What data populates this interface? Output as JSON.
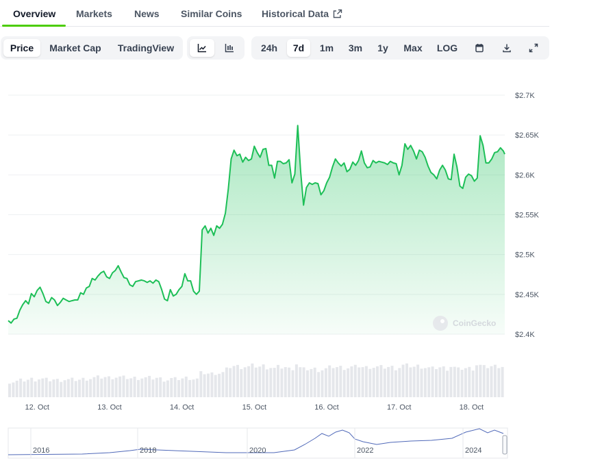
{
  "tabs": [
    {
      "label": "Overview",
      "active": true
    },
    {
      "label": "Markets"
    },
    {
      "label": "News"
    },
    {
      "label": "Similar Coins"
    },
    {
      "label": "Historical Data"
    }
  ],
  "toolbar": {
    "chart_types": [
      {
        "label": "Price",
        "selected": true
      },
      {
        "label": "Market Cap"
      },
      {
        "label": "TradingView"
      }
    ],
    "view_icons": [
      "line-chart-icon",
      "candlestick-icon"
    ],
    "ranges": [
      {
        "label": "24h"
      },
      {
        "label": "7d",
        "selected": true
      },
      {
        "label": "1m"
      },
      {
        "label": "3m"
      },
      {
        "label": "1y"
      },
      {
        "label": "Max"
      },
      {
        "label": "LOG"
      }
    ],
    "action_icons": [
      "calendar-icon",
      "download-icon",
      "expand-icon"
    ]
  },
  "colors": {
    "accent": "#4bcc00",
    "line": "#16c35a",
    "fill": "#bbf0cb",
    "volume": "#e5e7eb"
  },
  "watermark": "CoinGecko",
  "chart_data": {
    "type": "area",
    "title": "",
    "xlabel": "",
    "ylabel": "",
    "y_ticks": [
      "$2.7K",
      "$2.65K",
      "$2.6K",
      "$2.55K",
      "$2.5K",
      "$2.45K",
      "$2.4K"
    ],
    "ylim": [
      2400,
      2700
    ],
    "x_ticks": [
      "12. Oct",
      "13. Oct",
      "14. Oct",
      "15. Oct",
      "16. Oct",
      "17. Oct",
      "18. Oct"
    ],
    "x_range_days": [
      11.6,
      18.46
    ],
    "grid": true,
    "price_series": {
      "x_days": [
        11.6,
        11.64,
        11.68,
        11.72,
        11.76,
        11.8,
        11.84,
        11.88,
        11.92,
        11.96,
        12.0,
        12.04,
        12.08,
        12.12,
        12.16,
        12.2,
        12.24,
        12.28,
        12.32,
        12.36,
        12.4,
        12.44,
        12.48,
        12.52,
        12.56,
        12.6,
        12.64,
        12.68,
        12.72,
        12.76,
        12.8,
        12.84,
        12.88,
        12.92,
        12.96,
        13.0,
        13.04,
        13.08,
        13.12,
        13.16,
        13.2,
        13.24,
        13.28,
        13.32,
        13.36,
        13.4,
        13.44,
        13.48,
        13.52,
        13.56,
        13.6,
        13.64,
        13.68,
        13.72,
        13.76,
        13.8,
        13.84,
        13.88,
        13.92,
        13.96,
        14.0,
        14.04,
        14.08,
        14.12,
        14.16,
        14.2,
        14.24,
        14.28,
        14.32,
        14.36,
        14.4,
        14.44,
        14.48,
        14.52,
        14.56,
        14.6,
        14.64,
        14.68,
        14.72,
        14.76,
        14.8,
        14.84,
        14.88,
        14.92,
        14.96,
        15.0,
        15.04,
        15.08,
        15.12,
        15.16,
        15.2,
        15.24,
        15.28,
        15.32,
        15.36,
        15.4,
        15.44,
        15.48,
        15.52,
        15.56,
        15.6,
        15.64,
        15.68,
        15.72,
        15.76,
        15.8,
        15.84,
        15.88,
        15.92,
        15.96,
        16.0,
        16.04,
        16.08,
        16.12,
        16.16,
        16.2,
        16.24,
        16.28,
        16.32,
        16.36,
        16.4,
        16.44,
        16.48,
        16.52,
        16.56,
        16.6,
        16.64,
        16.68,
        16.72,
        16.76,
        16.8,
        16.84,
        16.88,
        16.92,
        16.96,
        17.0,
        17.04,
        17.08,
        17.12,
        17.16,
        17.2,
        17.24,
        17.28,
        17.32,
        17.36,
        17.4,
        17.44,
        17.48,
        17.52,
        17.56,
        17.6,
        17.64,
        17.68,
        17.72,
        17.76,
        17.8,
        17.84,
        17.88,
        17.92,
        17.96,
        18.0,
        18.04,
        18.08,
        18.12,
        18.16,
        18.2,
        18.24,
        18.28,
        18.32,
        18.36,
        18.4,
        18.44,
        18.46
      ],
      "price": [
        2417,
        2414,
        2419,
        2420,
        2430,
        2437,
        2442,
        2438,
        2451,
        2447,
        2455,
        2459,
        2451,
        2441,
        2439,
        2446,
        2443,
        2436,
        2440,
        2445,
        2443,
        2441,
        2442,
        2443,
        2443,
        2452,
        2450,
        2458,
        2460,
        2470,
        2468,
        2473,
        2477,
        2479,
        2472,
        2470,
        2477,
        2480,
        2486,
        2478,
        2471,
        2470,
        2462,
        2460,
        2466,
        2467,
        2468,
        2467,
        2465,
        2467,
        2464,
        2468,
        2466,
        2456,
        2444,
        2442,
        2456,
        2448,
        2450,
        2456,
        2460,
        2476,
        2467,
        2467,
        2454,
        2450,
        2454,
        2531,
        2536,
        2527,
        2533,
        2524,
        2536,
        2533,
        2538,
        2552,
        2582,
        2620,
        2631,
        2624,
        2626,
        2616,
        2622,
        2618,
        2620,
        2636,
        2628,
        2622,
        2632,
        2633,
        2612,
        2612,
        2596,
        2617,
        2617,
        2614,
        2615,
        2619,
        2590,
        2601,
        2662,
        2604,
        2562,
        2584,
        2590,
        2588,
        2590,
        2589,
        2575,
        2580,
        2590,
        2597,
        2610,
        2620,
        2615,
        2611,
        2615,
        2604,
        2607,
        2616,
        2612,
        2618,
        2630,
        2615,
        2609,
        2610,
        2618,
        2615,
        2617,
        2616,
        2615,
        2613,
        2617,
        2615,
        2614,
        2600,
        2612,
        2639,
        2632,
        2637,
        2630,
        2620,
        2631,
        2629,
        2622,
        2611,
        2603,
        2600,
        2595,
        2606,
        2612,
        2606,
        2595,
        2594,
        2626,
        2610,
        2586,
        2583,
        2597,
        2601,
        2599,
        2592,
        2596,
        2649,
        2637,
        2615,
        2615,
        2620,
        2628,
        2629,
        2634,
        2630,
        2626
      ]
    },
    "volume_bars": 135,
    "navigator": {
      "x_ticks": [
        "2016",
        "2018",
        "2020",
        "2022",
        "2024"
      ]
    }
  }
}
